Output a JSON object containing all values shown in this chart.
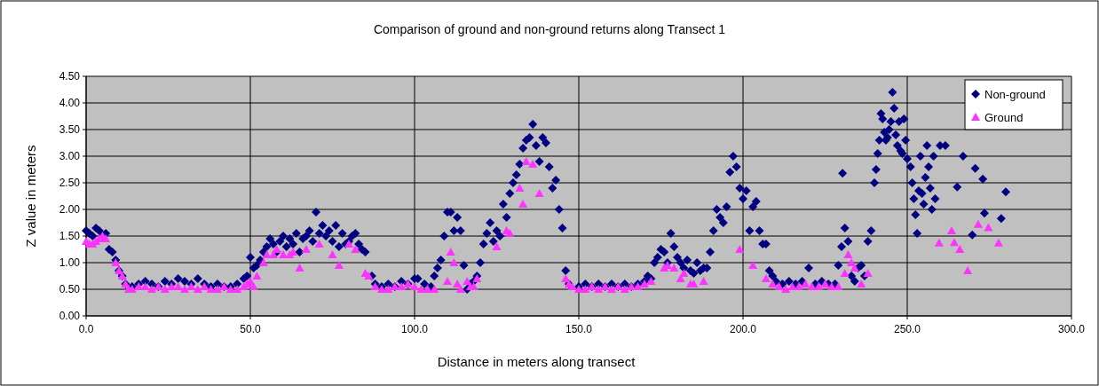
{
  "chart_data": {
    "type": "scatter",
    "title": "Comparison of ground and non-ground returns along Transect 1",
    "xlabel": "Distance in meters along transect",
    "ylabel": "Z value in meters",
    "xlim": [
      0,
      300
    ],
    "ylim": [
      0,
      4.5
    ],
    "xticks": [
      {
        "value": 0,
        "label": "0.0"
      },
      {
        "value": 50,
        "label": "50.0"
      },
      {
        "value": 100,
        "label": "100.0"
      },
      {
        "value": 150,
        "label": "150.0"
      },
      {
        "value": 200,
        "label": "200.0"
      },
      {
        "value": 250,
        "label": "250.0"
      },
      {
        "value": 300,
        "label": "300.0"
      }
    ],
    "yticks": [
      {
        "value": 0,
        "label": "0.00"
      },
      {
        "value": 0.5,
        "label": "0.50"
      },
      {
        "value": 1,
        "label": "1.00"
      },
      {
        "value": 1.5,
        "label": "1.50"
      },
      {
        "value": 2,
        "label": "2.00"
      },
      {
        "value": 2.5,
        "label": "2.50"
      },
      {
        "value": 3,
        "label": "3.00"
      },
      {
        "value": 3.5,
        "label": "3.50"
      },
      {
        "value": 4,
        "label": "4.00"
      },
      {
        "value": 4.5,
        "label": "4.50"
      }
    ],
    "grid": true,
    "legend": "top right",
    "series": [
      {
        "name": "Non-ground",
        "color": "#000080",
        "marker": "diamond",
        "x": [
          0,
          1,
          2,
          3,
          4,
          5,
          6,
          7,
          8,
          9,
          10,
          11,
          12,
          14,
          16,
          18,
          20,
          22,
          24,
          26,
          28,
          30,
          32,
          34,
          36,
          38,
          40,
          42,
          44,
          46,
          48,
          49,
          50,
          51,
          52,
          53,
          54,
          55,
          56,
          57,
          58,
          59,
          60,
          61,
          62,
          63,
          64,
          65,
          66,
          67,
          68,
          69,
          70,
          71,
          72,
          73,
          74,
          75,
          76,
          77,
          78,
          79,
          80,
          81,
          82,
          83,
          84,
          85,
          87,
          88,
          90,
          92,
          94,
          96,
          98,
          100,
          101,
          103,
          105,
          106,
          107,
          108,
          109,
          110,
          111,
          112,
          113,
          114,
          115,
          116,
          117,
          118,
          119,
          120,
          121,
          122,
          123,
          124,
          125,
          126,
          127,
          128,
          129,
          130,
          131,
          132,
          133,
          134,
          135,
          136,
          137,
          138,
          139,
          140,
          141,
          142,
          143,
          144,
          145,
          146,
          147,
          150,
          152,
          154,
          156,
          158,
          160,
          162,
          164,
          166,
          168,
          170,
          171,
          172,
          173,
          174,
          175,
          176,
          177,
          178,
          179,
          180,
          181,
          182,
          183,
          184,
          185,
          186,
          187,
          188,
          189,
          190,
          191,
          192,
          193,
          194,
          195,
          196,
          197,
          198,
          199,
          200,
          201,
          202,
          203,
          204,
          205,
          206,
          207,
          208,
          209,
          210,
          212,
          214,
          216,
          218,
          220,
          222,
          224,
          226,
          228,
          229,
          230,
          230.3,
          231,
          232,
          233,
          234,
          235,
          236,
          237,
          238,
          239,
          240,
          240.5,
          241,
          241.5,
          242,
          242.5,
          243,
          243.5,
          244,
          244.5,
          245,
          245.5,
          246,
          246.5,
          247,
          247.5,
          248,
          248.5,
          249,
          249.5,
          250,
          251,
          251.5,
          252,
          252.5,
          253,
          253.5,
          254,
          254.5,
          255,
          255.5,
          256,
          256.5,
          257,
          257.5,
          258,
          258.5,
          260,
          261.6,
          265.2,
          267,
          269.8,
          270.7,
          273,
          273.5,
          278.6,
          280
        ],
        "values": [
          1.6,
          1.55,
          1.5,
          1.65,
          1.6,
          1.5,
          1.55,
          1.25,
          1.2,
          1.05,
          0.85,
          0.75,
          0.6,
          0.55,
          0.6,
          0.65,
          0.6,
          0.55,
          0.65,
          0.6,
          0.7,
          0.65,
          0.6,
          0.7,
          0.6,
          0.55,
          0.6,
          0.55,
          0.55,
          0.6,
          0.7,
          0.75,
          1.1,
          0.9,
          0.95,
          1.05,
          1.2,
          1.3,
          1.45,
          1.35,
          1.2,
          1.4,
          1.5,
          1.3,
          1.45,
          1.35,
          1.55,
          1.2,
          1.45,
          1.5,
          1.6,
          1.4,
          1.95,
          1.55,
          1.7,
          1.5,
          1.6,
          1.4,
          1.7,
          1.3,
          1.55,
          1.35,
          1.4,
          1.5,
          1.55,
          1.35,
          1.25,
          1.2,
          0.75,
          0.6,
          0.55,
          0.6,
          0.55,
          0.65,
          0.6,
          0.7,
          0.7,
          0.6,
          0.55,
          0.75,
          0.9,
          1.05,
          1.5,
          1.95,
          1.95,
          1.6,
          1.85,
          1.6,
          0.95,
          0.5,
          0.6,
          0.65,
          0.75,
          1.0,
          1.35,
          1.55,
          1.75,
          1.4,
          1.6,
          1.5,
          2.1,
          1.85,
          2.3,
          2.5,
          2.65,
          2.85,
          3.15,
          3.3,
          3.35,
          3.6,
          3.2,
          2.9,
          3.35,
          3.25,
          2.8,
          2.4,
          2.55,
          2.0,
          1.65,
          0.85,
          0.6,
          0.55,
          0.6,
          0.55,
          0.6,
          0.55,
          0.6,
          0.55,
          0.6,
          0.55,
          0.6,
          0.65,
          0.75,
          0.7,
          1.0,
          1.1,
          1.25,
          1.2,
          1.0,
          1.55,
          1.3,
          1.1,
          1.0,
          0.9,
          1.05,
          0.85,
          0.8,
          1.0,
          0.85,
          0.9,
          0.9,
          1.2,
          1.6,
          2.0,
          1.85,
          1.75,
          2.05,
          2.7,
          3.0,
          2.8,
          2.4,
          2.2,
          2.35,
          1.6,
          2.05,
          2.15,
          1.6,
          1.35,
          1.35,
          0.85,
          0.75,
          0.65,
          0.6,
          0.65,
          0.6,
          0.65,
          0.9,
          0.6,
          0.65,
          0.6,
          0.6,
          0.95,
          1.3,
          2.68,
          1.65,
          1.4,
          0.75,
          0.65,
          0.9,
          0.95,
          0.75,
          1.4,
          1.6,
          2.5,
          2.75,
          3.05,
          3.3,
          3.8,
          3.7,
          3.45,
          3.3,
          3.35,
          3.5,
          3.65,
          4.2,
          3.9,
          3.4,
          3.2,
          3.65,
          3.1,
          3.05,
          3.7,
          3.3,
          2.95,
          2.8,
          2.5,
          2.2,
          1.9,
          1.55,
          2.35,
          3.0,
          2.3,
          2.1,
          2.6,
          3.2,
          2.8,
          2.4,
          2.0,
          3.0,
          2.2,
          3.2,
          3.2,
          2.42,
          3.0,
          1.52,
          2.77,
          2.57,
          1.93,
          1.83,
          2.33
        ]
      },
      {
        "name": "Ground",
        "color": "#ff33ff",
        "marker": "triangle",
        "x": [
          0,
          1,
          2,
          3,
          4,
          5,
          6,
          9,
          10,
          11,
          12,
          13,
          14,
          16,
          18,
          20,
          22,
          24,
          26,
          28,
          30,
          32,
          34,
          36,
          38,
          40,
          42,
          44,
          46,
          48,
          49,
          50,
          51,
          52,
          54,
          55,
          57,
          58,
          60,
          62,
          63,
          65,
          67,
          71,
          75,
          77,
          80,
          82,
          85,
          86,
          88,
          90,
          92,
          94,
          96,
          98,
          100,
          102,
          104,
          106,
          110,
          111,
          112,
          113,
          114,
          116,
          117,
          118,
          119,
          125,
          128,
          129,
          132,
          133,
          134,
          136,
          138,
          146,
          147,
          148,
          150,
          152,
          154,
          156,
          158,
          160,
          162,
          164,
          166,
          168,
          170,
          172,
          176,
          177,
          179,
          181,
          182,
          184,
          185,
          188,
          199,
          203,
          207,
          209,
          211,
          213,
          215,
          217,
          219,
          221,
          223,
          225,
          227,
          229,
          231,
          232,
          233,
          234,
          236,
          238,
          259.7,
          263.5,
          264.3,
          266,
          268.4,
          271.6,
          274.7,
          277.8
        ],
        "values": [
          1.4,
          1.35,
          1.35,
          1.4,
          1.45,
          1.5,
          1.45,
          1.0,
          0.85,
          0.75,
          0.6,
          0.5,
          0.5,
          0.55,
          0.55,
          0.5,
          0.55,
          0.5,
          0.55,
          0.55,
          0.5,
          0.55,
          0.5,
          0.55,
          0.5,
          0.5,
          0.55,
          0.5,
          0.5,
          0.55,
          0.6,
          0.65,
          0.55,
          0.75,
          1.0,
          1.15,
          1.15,
          1.25,
          1.15,
          1.15,
          1.2,
          0.9,
          1.25,
          1.35,
          1.15,
          0.95,
          1.35,
          1.25,
          0.8,
          0.75,
          0.55,
          0.5,
          0.5,
          0.55,
          0.55,
          0.6,
          0.55,
          0.5,
          0.5,
          0.5,
          0.65,
          1.2,
          1.0,
          0.6,
          0.5,
          0.65,
          0.55,
          0.55,
          0.7,
          1.3,
          1.6,
          1.55,
          2.4,
          2.1,
          2.9,
          2.85,
          2.3,
          0.7,
          0.6,
          0.55,
          0.5,
          0.5,
          0.55,
          0.5,
          0.55,
          0.5,
          0.55,
          0.5,
          0.55,
          0.55,
          0.6,
          0.65,
          0.9,
          0.95,
          0.9,
          0.7,
          0.8,
          0.6,
          0.6,
          0.65,
          1.25,
          0.95,
          0.7,
          0.6,
          0.55,
          0.5,
          0.55,
          0.55,
          0.6,
          0.55,
          0.55,
          0.6,
          0.55,
          0.55,
          0.8,
          1.15,
          1.0,
          0.9,
          0.6,
          0.8,
          1.37,
          1.6,
          1.38,
          1.25,
          0.85,
          1.72,
          1.66,
          1.37
        ]
      }
    ]
  }
}
